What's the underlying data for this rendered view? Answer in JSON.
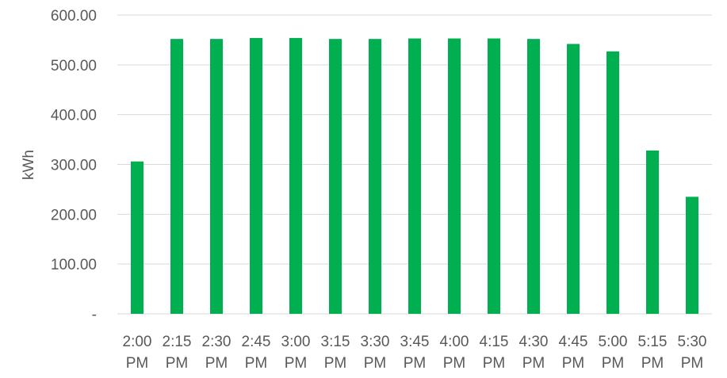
{
  "chart_data": {
    "type": "bar",
    "title": "",
    "xlabel": "",
    "ylabel": "kWh",
    "ylim": [
      0,
      600
    ],
    "yticks": [
      {
        "value": 0,
        "label": "-"
      },
      {
        "value": 100,
        "label": "100.00"
      },
      {
        "value": 200,
        "label": "200.00"
      },
      {
        "value": 300,
        "label": "300.00"
      },
      {
        "value": 400,
        "label": "400.00"
      },
      {
        "value": 500,
        "label": "500.00"
      },
      {
        "value": 600,
        "label": "600.00"
      }
    ],
    "grid": true,
    "legend": "none",
    "bar_color": "#00b050",
    "categories": [
      {
        "time": "2:00",
        "period": "PM"
      },
      {
        "time": "2:15",
        "period": "PM"
      },
      {
        "time": "2:30",
        "period": "PM"
      },
      {
        "time": "2:45",
        "period": "PM"
      },
      {
        "time": "3:00",
        "period": "PM"
      },
      {
        "time": "3:15",
        "period": "PM"
      },
      {
        "time": "3:30",
        "period": "PM"
      },
      {
        "time": "3:45",
        "period": "PM"
      },
      {
        "time": "4:00",
        "period": "PM"
      },
      {
        "time": "4:15",
        "period": "PM"
      },
      {
        "time": "4:30",
        "period": "PM"
      },
      {
        "time": "4:45",
        "period": "PM"
      },
      {
        "time": "5:00",
        "period": "PM"
      },
      {
        "time": "5:15",
        "period": "PM"
      },
      {
        "time": "5:30",
        "period": "PM"
      }
    ],
    "values": [
      306,
      552,
      552,
      554,
      554,
      552,
      552,
      553,
      553,
      553,
      552,
      542,
      527,
      328,
      235
    ]
  }
}
